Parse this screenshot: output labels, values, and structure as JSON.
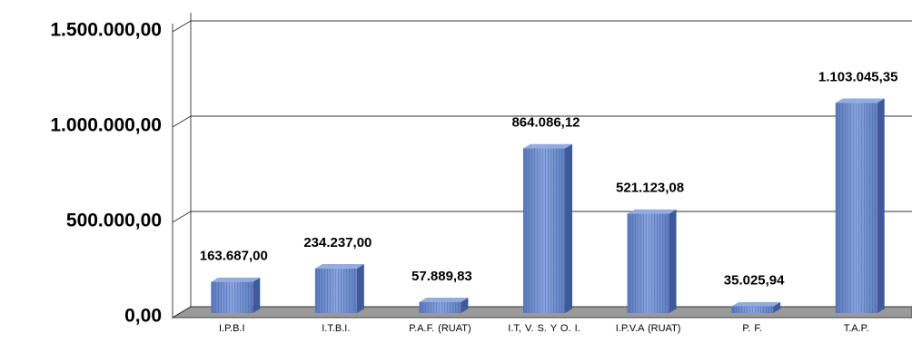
{
  "chart_data": {
    "type": "bar",
    "categories": [
      "I.P.B.I",
      "I.T.B.I.",
      "P.A.F. (RUAT)",
      "I.T, V. S. Y O. I.",
      "I.P.V.A (RUAT)",
      "P. F.",
      "T.A.P."
    ],
    "values": [
      163687.0,
      234237.0,
      57889.83,
      864086.12,
      521123.08,
      35025.94,
      1103045.35
    ],
    "value_labels": [
      "163.687,00",
      "234.237,00",
      "57.889,83",
      "864.086,12",
      "521.123,08",
      "35.025,94",
      "1.103.045,35"
    ],
    "color": "#6f8fd0",
    "ylim": [
      0,
      1500000
    ],
    "yticks": [
      {
        "value": 0,
        "label": "0,00"
      },
      {
        "value": 500000,
        "label": "500.000,00"
      },
      {
        "value": 1000000,
        "label": "1.000.000,00"
      },
      {
        "value": 1500000,
        "label": "1.500.000,00"
      }
    ],
    "grid": true
  }
}
